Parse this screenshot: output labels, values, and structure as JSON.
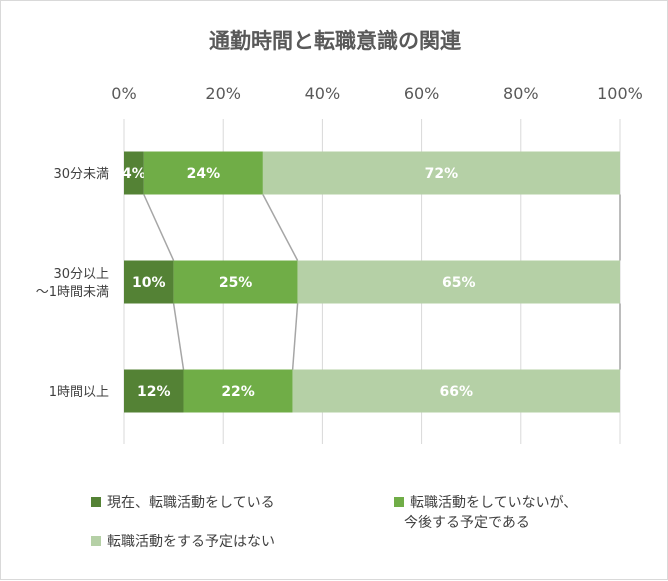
{
  "chart_data": {
    "type": "bar",
    "orientation": "horizontal",
    "stacked": "percent",
    "title": "通勤時間と転職意識の関連",
    "categories": [
      "30分未満",
      "30分以上\n～1時間未満",
      "1時間以上"
    ],
    "x_ticks": [
      "0%",
      "20%",
      "40%",
      "60%",
      "80%",
      "100%"
    ],
    "xlim": [
      0,
      100
    ],
    "grid": true,
    "legend_position": "bottom",
    "series_lines": true,
    "series": [
      {
        "name": "現在、転職活動をしている",
        "color": "#548235",
        "values": [
          4,
          10,
          12
        ],
        "labels": [
          "4%",
          "10%",
          "12%"
        ]
      },
      {
        "name": "転職活動をしていないが、\n今後する予定である",
        "color": "#70ad47",
        "values": [
          24,
          25,
          22
        ],
        "labels": [
          "24%",
          "25%",
          "22%"
        ]
      },
      {
        "name": "転職活動をする予定はない",
        "color": "#b5d0a6",
        "values": [
          72,
          65,
          66
        ],
        "labels": [
          "72%",
          "65%",
          "66%"
        ]
      }
    ]
  }
}
